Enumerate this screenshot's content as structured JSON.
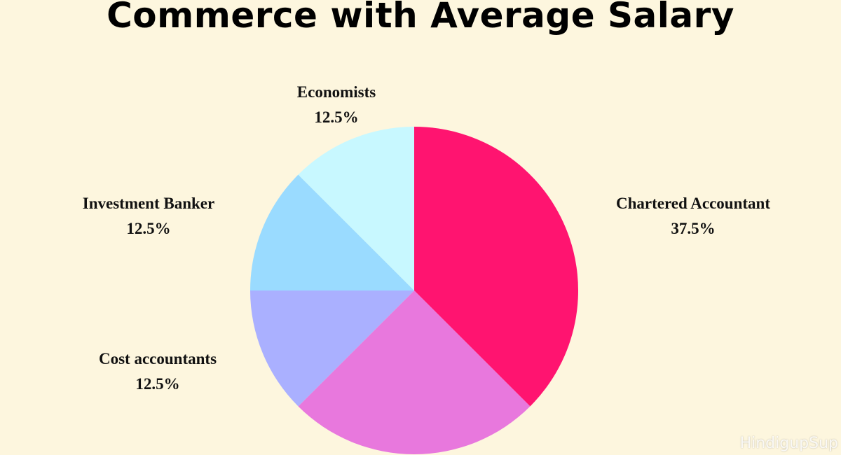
{
  "chart_data": {
    "type": "pie",
    "title": "Commerce with Average Salary",
    "slices": [
      {
        "label": "Chartered Accountant",
        "value": 37.5,
        "display": "37.5%",
        "color": "#ff1470"
      },
      {
        "label": "",
        "value": 25,
        "display": "",
        "color": "#e878dd"
      },
      {
        "label": "Cost accountants",
        "value": 12.5,
        "display": "12.5%",
        "color": "#aab0ff"
      },
      {
        "label": "Investment Banker",
        "value": 12.5,
        "display": "12.5%",
        "color": "#9adbff"
      },
      {
        "label": "Economists",
        "value": 12.5,
        "display": "12.5%",
        "color": "#c8f8ff"
      }
    ],
    "start_angle": "12 o'clock",
    "direction": "clockwise",
    "legend": "none"
  },
  "watermark": "HindigupSup"
}
